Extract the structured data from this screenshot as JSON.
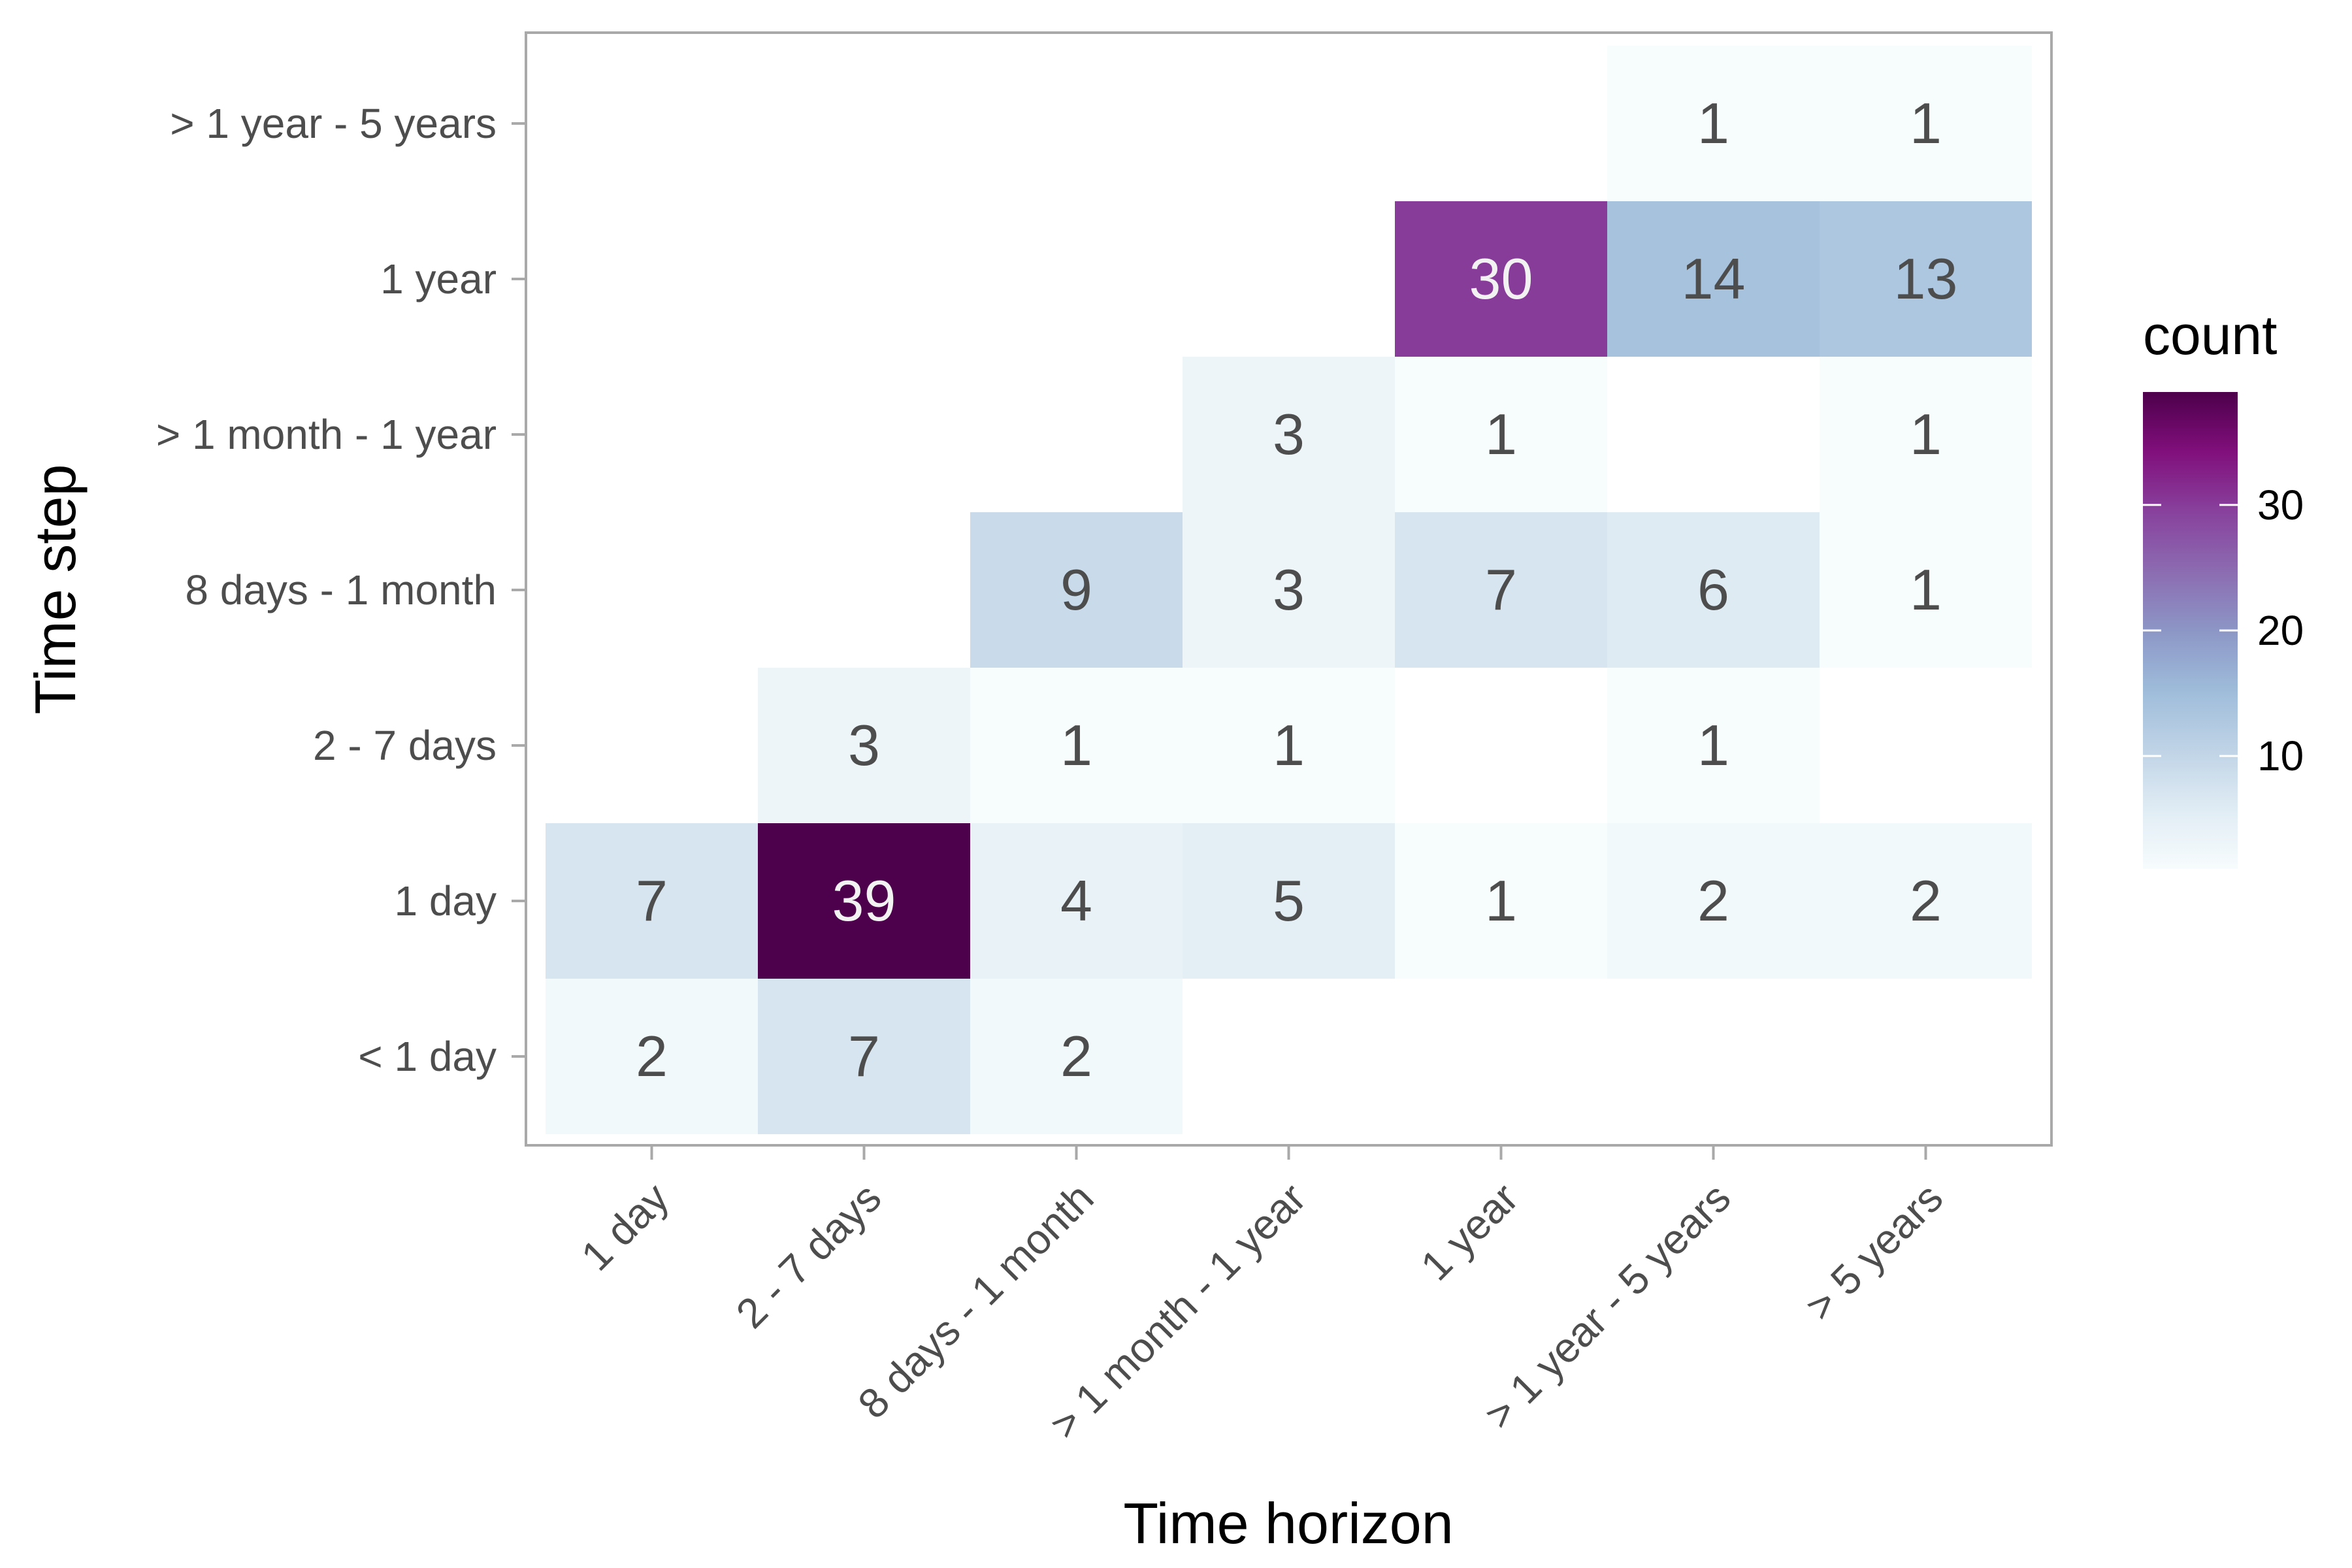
{
  "chart_data": {
    "type": "heatmap",
    "title": "",
    "xlabel": "Time horizon",
    "ylabel": "Time step",
    "x_categories": [
      "1 day",
      "2 - 7 days",
      "8 days - 1 month",
      "> 1 month - 1 year",
      "1 year",
      "> 1 year - 5 years",
      "> 5 years"
    ],
    "y_categories": [
      "< 1 day",
      "1 day",
      "2 - 7 days",
      "8 days - 1 month",
      "> 1 month - 1 year",
      "1 year",
      "> 1 year - 5 years"
    ],
    "cells": [
      {
        "x": "1 day",
        "y": "< 1 day",
        "value": 2
      },
      {
        "x": "2 - 7 days",
        "y": "< 1 day",
        "value": 7
      },
      {
        "x": "8 days - 1 month",
        "y": "< 1 day",
        "value": 2
      },
      {
        "x": "1 day",
        "y": "1 day",
        "value": 7
      },
      {
        "x": "2 - 7 days",
        "y": "1 day",
        "value": 39
      },
      {
        "x": "8 days - 1 month",
        "y": "1 day",
        "value": 4
      },
      {
        "x": "> 1 month - 1 year",
        "y": "1 day",
        "value": 5
      },
      {
        "x": "1 year",
        "y": "1 day",
        "value": 1
      },
      {
        "x": "> 1 year - 5 years",
        "y": "1 day",
        "value": 2
      },
      {
        "x": "> 5 years",
        "y": "1 day",
        "value": 2
      },
      {
        "x": "2 - 7 days",
        "y": "2 - 7 days",
        "value": 3
      },
      {
        "x": "8 days - 1 month",
        "y": "2 - 7 days",
        "value": 1
      },
      {
        "x": "> 1 month - 1 year",
        "y": "2 - 7 days",
        "value": 1
      },
      {
        "x": "> 1 year - 5 years",
        "y": "2 - 7 days",
        "value": 1
      },
      {
        "x": "8 days - 1 month",
        "y": "8 days - 1 month",
        "value": 9
      },
      {
        "x": "> 1 month - 1 year",
        "y": "8 days - 1 month",
        "value": 3
      },
      {
        "x": "1 year",
        "y": "8 days - 1 month",
        "value": 7
      },
      {
        "x": "> 1 year - 5 years",
        "y": "8 days - 1 month",
        "value": 6
      },
      {
        "x": "> 5 years",
        "y": "8 days - 1 month",
        "value": 1
      },
      {
        "x": "> 1 month - 1 year",
        "y": "> 1 month - 1 year",
        "value": 3
      },
      {
        "x": "1 year",
        "y": "> 1 month - 1 year",
        "value": 1
      },
      {
        "x": "> 5 years",
        "y": "> 1 month - 1 year",
        "value": 1
      },
      {
        "x": "1 year",
        "y": "1 year",
        "value": 30
      },
      {
        "x": "> 1 year - 5 years",
        "y": "1 year",
        "value": 14
      },
      {
        "x": "> 5 years",
        "y": "1 year",
        "value": 13
      },
      {
        "x": "> 1 year - 5 years",
        "y": "> 1 year - 5 years",
        "value": 1
      },
      {
        "x": "> 5 years",
        "y": "> 1 year - 5 years",
        "value": 1
      }
    ],
    "legend": {
      "title": "count",
      "position": "right",
      "ticks": [
        10,
        20,
        30
      ],
      "range": [
        1,
        39
      ],
      "colors": [
        "#f7fcfd",
        "#e0ecf4",
        "#bfd3e6",
        "#9ebcda",
        "#8c96c6",
        "#8c6bb1",
        "#88419d",
        "#810f7c",
        "#4d004b"
      ]
    },
    "grid": false
  }
}
